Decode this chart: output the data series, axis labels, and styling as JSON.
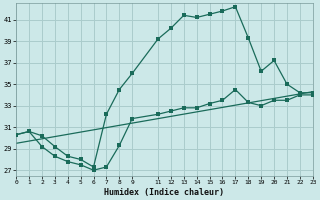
{
  "xlabel": "Humidex (Indice chaleur)",
  "bg_color": "#cce8e8",
  "grid_color": "#aacccc",
  "line_color": "#1a6b5a",
  "xlim": [
    0,
    23
  ],
  "ylim": [
    26.5,
    42.5
  ],
  "xticks": [
    0,
    1,
    2,
    3,
    4,
    5,
    6,
    7,
    8,
    9,
    11,
    12,
    13,
    14,
    15,
    16,
    17,
    18,
    19,
    20,
    21,
    22,
    23
  ],
  "yticks": [
    27,
    29,
    31,
    33,
    35,
    37,
    39,
    41
  ],
  "line1_x": [
    0,
    1,
    2,
    3,
    4,
    5,
    6,
    7,
    8,
    9,
    11,
    12,
    13,
    14,
    15,
    16,
    17,
    18,
    19,
    20,
    21,
    22,
    23
  ],
  "line1_y": [
    30.3,
    30.6,
    30.2,
    29.2,
    28.3,
    28.0,
    27.3,
    32.2,
    34.5,
    36.0,
    39.2,
    40.2,
    41.4,
    41.2,
    41.5,
    41.8,
    42.2,
    39.3,
    36.2,
    37.2,
    35.0,
    34.2,
    34.2
  ],
  "line2_x": [
    0,
    1,
    2,
    3,
    4,
    5,
    6,
    7,
    8,
    9,
    11,
    12,
    13,
    14,
    15,
    16,
    17,
    18,
    19,
    20,
    21,
    22,
    23
  ],
  "line2_y": [
    30.3,
    30.6,
    29.2,
    28.3,
    27.8,
    27.5,
    27.0,
    27.3,
    29.3,
    31.8,
    32.2,
    32.5,
    32.8,
    32.8,
    33.2,
    33.5,
    34.5,
    33.3,
    33.0,
    33.5,
    33.5,
    34.0,
    34.0
  ],
  "line3_x": [
    0,
    23
  ],
  "line3_y": [
    29.5,
    34.3
  ]
}
